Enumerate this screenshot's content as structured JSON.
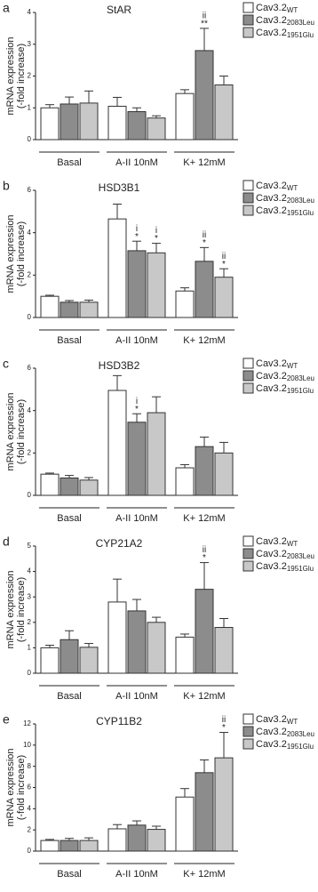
{
  "chart_data": [
    {
      "type": "bar",
      "panel": "a",
      "title": "StAR",
      "ylabel": [
        "mRNA expression",
        "(-fold increase)"
      ],
      "categories": [
        "Basal",
        "A-II 10nM",
        "K+ 12mM"
      ],
      "ylim": [
        0,
        4
      ],
      "yticks": [
        0,
        1,
        2,
        3,
        4
      ],
      "series": [
        {
          "name": "Cav3.2",
          "subscript": "WT",
          "color": "#ffffff",
          "values": [
            1.0,
            1.05,
            1.45
          ],
          "errors": [
            0.1,
            0.28,
            0.12
          ],
          "annotations": [
            null,
            null,
            null
          ]
        },
        {
          "name": "Cav3.2",
          "subscript": "2083Leu",
          "color": "#8c8c8c",
          "values": [
            1.12,
            0.88,
            2.8
          ],
          "errors": [
            0.22,
            0.12,
            0.7
          ],
          "annotations": [
            null,
            null,
            [
              "ii",
              "**"
            ]
          ]
        },
        {
          "name": "Cav3.2",
          "subscript": "1951Glu",
          "color": "#c8c8c8",
          "values": [
            1.15,
            0.68,
            1.72
          ],
          "errors": [
            0.38,
            0.07,
            0.28
          ],
          "annotations": [
            null,
            null,
            null
          ]
        }
      ]
    },
    {
      "type": "bar",
      "panel": "b",
      "title": "HSD3B1",
      "ylabel": [
        "mRNA expression",
        "(-fold increase)"
      ],
      "categories": [
        "Basal",
        "A-II 10nM",
        "K+ 12mM"
      ],
      "ylim": [
        0,
        6
      ],
      "yticks": [
        0,
        2,
        4,
        6
      ],
      "series": [
        {
          "name": "Cav3.2",
          "subscript": "WT",
          "color": "#ffffff",
          "values": [
            1.0,
            4.65,
            1.25
          ],
          "errors": [
            0.05,
            0.7,
            0.15
          ],
          "annotations": [
            null,
            null,
            null
          ]
        },
        {
          "name": "Cav3.2",
          "subscript": "2083Leu",
          "color": "#8c8c8c",
          "values": [
            0.72,
            3.15,
            2.65
          ],
          "errors": [
            0.08,
            0.45,
            0.65
          ],
          "annotations": [
            null,
            [
              "i",
              "*"
            ],
            [
              "ii",
              "*"
            ]
          ]
        },
        {
          "name": "Cav3.2",
          "subscript": "1951Glu",
          "color": "#c8c8c8",
          "values": [
            0.72,
            3.05,
            1.9
          ],
          "errors": [
            0.1,
            0.45,
            0.4
          ],
          "annotations": [
            null,
            [
              "i",
              "*"
            ],
            [
              "ii",
              "*"
            ]
          ]
        }
      ]
    },
    {
      "type": "bar",
      "panel": "c",
      "title": "HSD3B2",
      "ylabel": [
        "mRNA expression",
        "(-fold increase)"
      ],
      "categories": [
        "Basal",
        "A-II 10nM",
        "K+ 12mM"
      ],
      "ylim": [
        0,
        6
      ],
      "yticks": [
        0,
        2,
        4,
        6
      ],
      "series": [
        {
          "name": "Cav3.2",
          "subscript": "WT",
          "color": "#ffffff",
          "values": [
            1.0,
            4.95,
            1.3
          ],
          "errors": [
            0.05,
            0.7,
            0.15
          ],
          "annotations": [
            null,
            null,
            null
          ]
        },
        {
          "name": "Cav3.2",
          "subscript": "2083Leu",
          "color": "#8c8c8c",
          "values": [
            0.82,
            3.45,
            2.3
          ],
          "errors": [
            0.12,
            0.4,
            0.45
          ],
          "annotations": [
            null,
            [
              "i",
              "*"
            ],
            null
          ]
        },
        {
          "name": "Cav3.2",
          "subscript": "1951Glu",
          "color": "#c8c8c8",
          "values": [
            0.72,
            3.9,
            2.0
          ],
          "errors": [
            0.12,
            0.75,
            0.5
          ],
          "annotations": [
            null,
            null,
            null
          ]
        }
      ]
    },
    {
      "type": "bar",
      "panel": "d",
      "title": "CYP21A2",
      "ylabel": [
        "mRNA expression",
        "(-fold increase)"
      ],
      "categories": [
        "Basal",
        "A-II 10nM",
        "K+ 12mM"
      ],
      "ylim": [
        0,
        5
      ],
      "yticks": [
        0,
        1,
        2,
        3,
        4,
        5
      ],
      "series": [
        {
          "name": "Cav3.2",
          "subscript": "WT",
          "color": "#ffffff",
          "values": [
            1.0,
            2.8,
            1.42
          ],
          "errors": [
            0.1,
            0.9,
            0.12
          ],
          "annotations": [
            null,
            null,
            null
          ]
        },
        {
          "name": "Cav3.2",
          "subscript": "2083Leu",
          "color": "#8c8c8c",
          "values": [
            1.32,
            2.45,
            3.3
          ],
          "errors": [
            0.35,
            0.45,
            1.05
          ],
          "annotations": [
            null,
            null,
            [
              "ii",
              "*"
            ]
          ]
        },
        {
          "name": "Cav3.2",
          "subscript": "1951Glu",
          "color": "#c8c8c8",
          "values": [
            1.02,
            2.0,
            1.8
          ],
          "errors": [
            0.15,
            0.2,
            0.35
          ],
          "annotations": [
            null,
            null,
            null
          ]
        }
      ]
    },
    {
      "type": "bar",
      "panel": "e",
      "title": "CYP11B2",
      "ylabel": [
        "mRNA expression",
        "(-fold increase)"
      ],
      "categories": [
        "Basal",
        "A-II 10nM",
        "K+ 12mM"
      ],
      "ylim": [
        0,
        12
      ],
      "yticks": [
        0,
        2,
        4,
        6,
        8,
        10,
        12
      ],
      "series": [
        {
          "name": "Cav3.2",
          "subscript": "WT",
          "color": "#ffffff",
          "values": [
            1.0,
            2.1,
            5.1
          ],
          "errors": [
            0.1,
            0.4,
            0.8
          ],
          "annotations": [
            null,
            null,
            null
          ]
        },
        {
          "name": "Cav3.2",
          "subscript": "2083Leu",
          "color": "#8c8c8c",
          "values": [
            1.0,
            2.45,
            7.4
          ],
          "errors": [
            0.2,
            0.4,
            1.2
          ],
          "annotations": [
            null,
            null,
            null
          ]
        },
        {
          "name": "Cav3.2",
          "subscript": "1951Glu",
          "color": "#c8c8c8",
          "values": [
            1.0,
            2.05,
            8.8
          ],
          "errors": [
            0.25,
            0.3,
            2.4
          ],
          "annotations": [
            null,
            null,
            [
              "ii",
              "*"
            ]
          ]
        }
      ]
    }
  ]
}
